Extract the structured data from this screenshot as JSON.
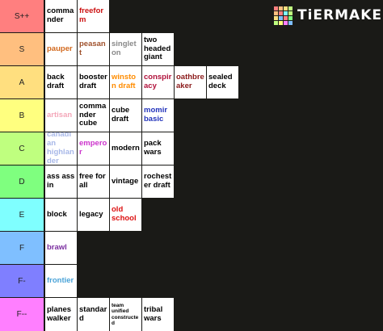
{
  "brand": {
    "logo_text": "TiERMAKER",
    "logo_colors": [
      "#ff7f7f",
      "#ffbf7f",
      "#ffdf7f",
      "#bfff7f",
      "#ffbf7f",
      "#ff7f7f",
      "#7fffff",
      "#bfff7f",
      "#ffdf7f",
      "#7fbfff",
      "#ff7f7f",
      "#7fff7f",
      "#bfff7f",
      "#ffff7f",
      "#ff7fff",
      "#7fbfff"
    ]
  },
  "tiers": [
    {
      "label": "S++",
      "color": "#ff7f7f",
      "items": [
        {
          "text": "commander",
          "color": "#000000"
        },
        {
          "text": "freeform",
          "color": "#cc1111"
        }
      ]
    },
    {
      "label": "S",
      "color": "#ffbf7f",
      "items": [
        {
          "text": "pauper",
          "color": "#d2691e"
        },
        {
          "text": "peasant",
          "color": "#a0522d"
        },
        {
          "text": "singleton",
          "color": "#8a8a8a"
        },
        {
          "text": "two headed giant",
          "color": "#000000"
        }
      ]
    },
    {
      "label": "A",
      "color": "#ffdf7f",
      "items": [
        {
          "text": "back draft",
          "color": "#000000"
        },
        {
          "text": "booster draft",
          "color": "#000000"
        },
        {
          "text": "winston draft",
          "color": "#ff8c00"
        },
        {
          "text": "conspiracy",
          "color": "#b0103a"
        },
        {
          "text": "oathbreaker",
          "color": "#8b1a1a"
        },
        {
          "text": "sealed deck",
          "color": "#000000"
        }
      ]
    },
    {
      "label": "B",
      "color": "#ffff7f",
      "items": [
        {
          "text": "artisan",
          "color": "#f4a7b9"
        },
        {
          "text": "commander cube",
          "color": "#000000"
        },
        {
          "text": "cube draft",
          "color": "#000000"
        },
        {
          "text": "momir basic",
          "color": "#2233bb"
        }
      ]
    },
    {
      "label": "C",
      "color": "#bfff7f",
      "items": [
        {
          "text": "canadian highlander",
          "color": "#a8b8e8"
        },
        {
          "text": "emperor",
          "color": "#cc33cc"
        },
        {
          "text": "modern",
          "color": "#000000"
        },
        {
          "text": "pack wars",
          "color": "#000000"
        }
      ]
    },
    {
      "label": "D",
      "color": "#7fff7f",
      "items": [
        {
          "text": "ass ass in",
          "color": "#000000"
        },
        {
          "text": "free for all",
          "color": "#000000"
        },
        {
          "text": "vintage",
          "color": "#000000"
        },
        {
          "text": "rochester draft",
          "color": "#000000"
        }
      ]
    },
    {
      "label": "E",
      "color": "#7fffff",
      "items": [
        {
          "text": "block",
          "color": "#000000"
        },
        {
          "text": "legacy",
          "color": "#000000"
        },
        {
          "text": "old school",
          "color": "#dd1111"
        }
      ]
    },
    {
      "label": "F",
      "color": "#7fbfff",
      "items": [
        {
          "text": "brawl",
          "color": "#7b2fa0"
        }
      ]
    },
    {
      "label": "F-",
      "color": "#7f7fff",
      "items": [
        {
          "text": "frontier",
          "color": "#4aa3d8"
        }
      ]
    },
    {
      "label": "F--",
      "color": "#ff7fff",
      "items": [
        {
          "text": "planeswalker",
          "color": "#000000"
        },
        {
          "text": "standard",
          "color": "#000000"
        },
        {
          "text": "team unified constructed",
          "color": "#000000"
        },
        {
          "text": "tribal wars",
          "color": "#000000"
        }
      ]
    }
  ]
}
